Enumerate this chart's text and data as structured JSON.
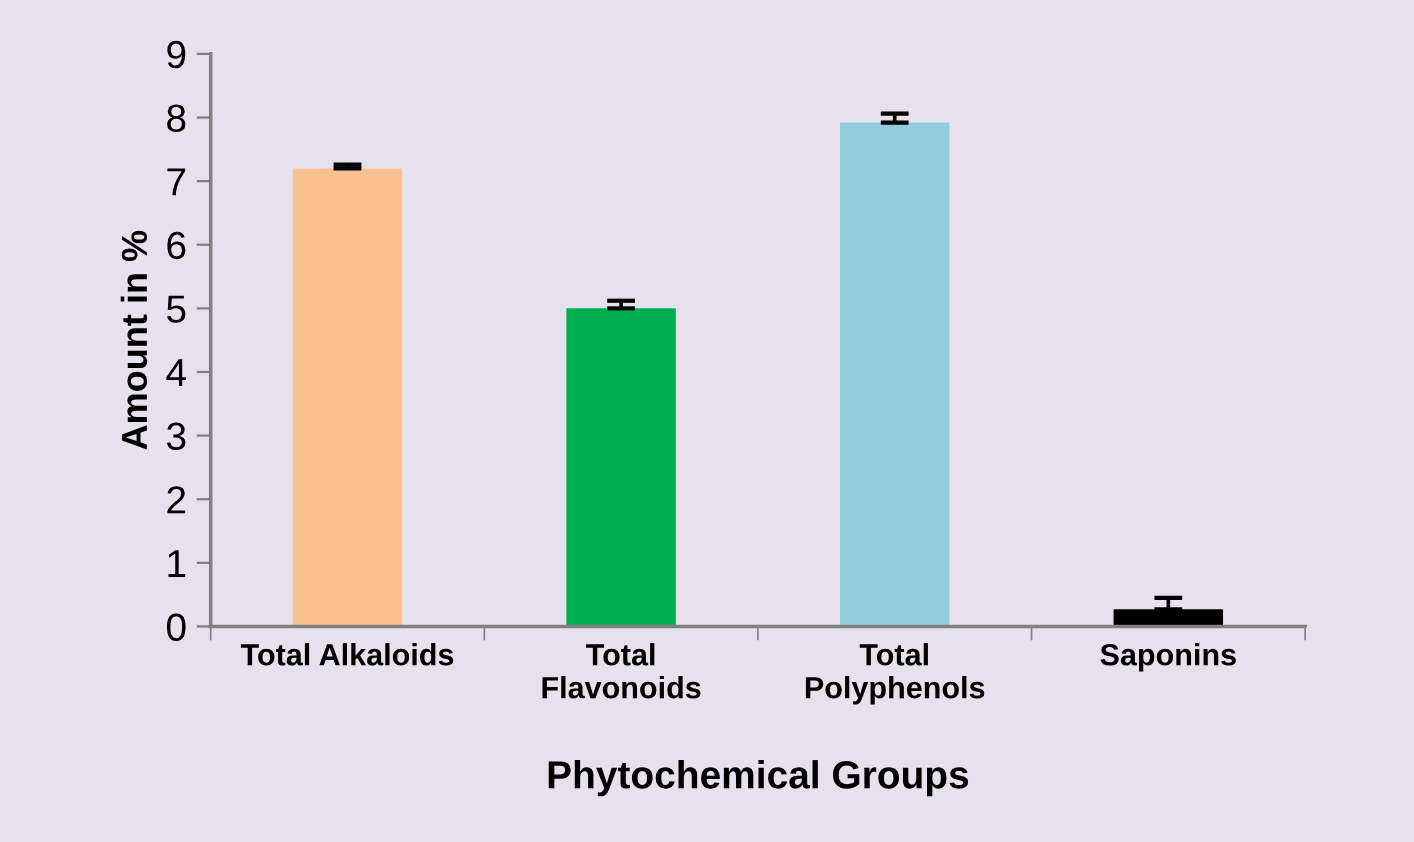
{
  "chart_data": {
    "type": "bar",
    "xlabel": "Phytochemical Groups",
    "ylabel": "Amount in %",
    "categories": [
      "Total Alkaloids",
      "Total\nFlavonoids",
      "Total\nPolyphenols",
      "Saponins"
    ],
    "values": [
      7.2,
      5.0,
      7.92,
      0.27
    ],
    "colors": [
      "#fac090",
      "#00b050",
      "#93cddd",
      "#000000"
    ],
    "errors": [
      [
        7.2,
        7.26
      ],
      [
        5.0,
        5.12
      ],
      [
        7.92,
        8.06
      ],
      [
        0.27,
        0.45
      ]
    ],
    "ylim": [
      0,
      9
    ],
    "yticks": [
      0,
      1,
      2,
      3,
      4,
      5,
      6,
      7,
      8,
      9
    ],
    "grid": false,
    "legend": false
  }
}
